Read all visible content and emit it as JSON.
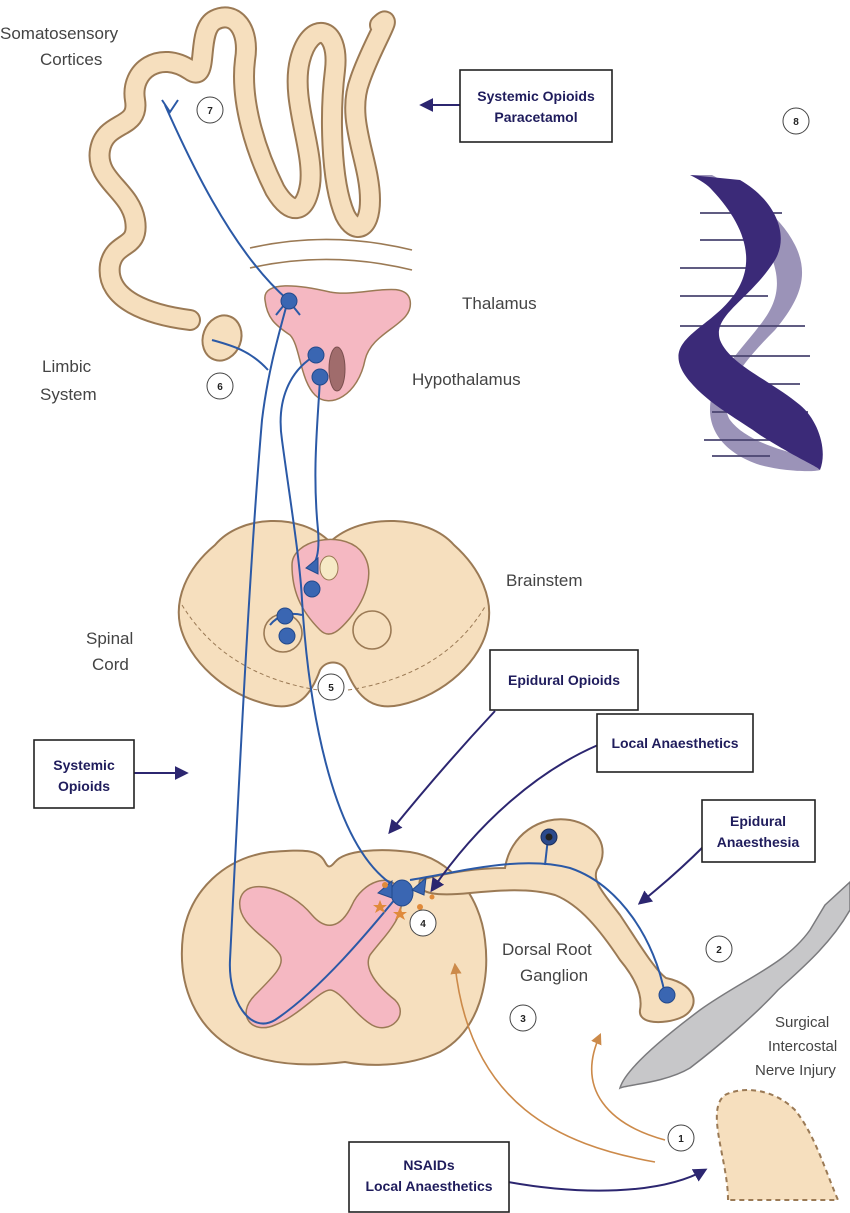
{
  "labels": {
    "somatosensory_1": "Somatosensory",
    "somatosensory_2": "Cortices",
    "thalamus": "Thalamus",
    "hypothalamus": "Hypothalamus",
    "limbic_1": "Limbic",
    "limbic_2": "System",
    "brainstem": "Brainstem",
    "spinal_1": "Spinal",
    "spinal_2": "Cord",
    "drg_1": "Dorsal Root",
    "drg_2": "Ganglion",
    "injury_1": "Surgical",
    "injury_2": "Intercostal",
    "injury_3": "Nerve Injury"
  },
  "boxes": {
    "systemic_opioids_paracetamol_1": "Systemic Opioids",
    "systemic_opioids_paracetamol_2": "Paracetamol",
    "epidural_opioids": "Epidural Opioids",
    "local_anaesthetics": "Local Anaesthetics",
    "systemic_opioids_1": "Systemic",
    "systemic_opioids_2": "Opioids",
    "epidural_anaesthesia_1": "Epidural",
    "epidural_anaesthesia_2": "Anaesthesia",
    "nsaids_1": "NSAIDs",
    "nsaids_2": "Local Anaesthetics"
  },
  "markers": {
    "m1": "1",
    "m2": "2",
    "m3": "3",
    "m4": "4",
    "m5": "5",
    "m6": "6",
    "m7": "7",
    "m8": "8"
  },
  "colors": {
    "tissue": "#f6dfbe",
    "grey_matter": "#f5b8c2",
    "nerve": "#2b59a6",
    "drug_arrow": "#2c2670",
    "inflammation_arrow": "#cc8a4a",
    "dna_dark": "#3b2a78",
    "dna_light": "#9b93b8"
  }
}
